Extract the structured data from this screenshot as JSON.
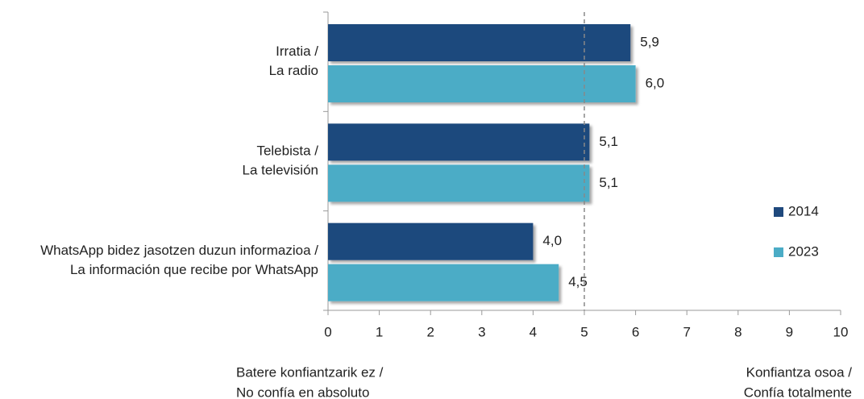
{
  "chart_data": {
    "type": "hbar",
    "categories": [
      [
        "Irratia /",
        "La radio"
      ],
      [
        "Telebista /",
        "La televisión"
      ],
      [
        "WhatsApp bidez jasotzen duzun informazioa /",
        "La información que recibe por WhatsApp"
      ]
    ],
    "series": [
      {
        "name": "2014",
        "color": "#1f497d",
        "values": [
          5.9,
          5.1,
          4.0
        ],
        "value_labels": [
          "5,9",
          "5,1",
          "4,0"
        ]
      },
      {
        "name": "2023",
        "color": "#4bacc6",
        "values": [
          6.0,
          5.1,
          4.5
        ],
        "value_labels": [
          "6,0",
          "5,1",
          "4,5"
        ]
      }
    ],
    "xlim": [
      0,
      10
    ],
    "xticks": [
      0,
      1,
      2,
      3,
      4,
      5,
      6,
      7,
      8,
      9,
      10
    ],
    "reference_line": 5,
    "x_axis_left_label": [
      "Batere konfiantzarik ez /",
      "No confía en absoluto"
    ],
    "x_axis_right_label": [
      "Konfiantza osoa /",
      "Confía totalmente"
    ],
    "legend_position": "right"
  }
}
